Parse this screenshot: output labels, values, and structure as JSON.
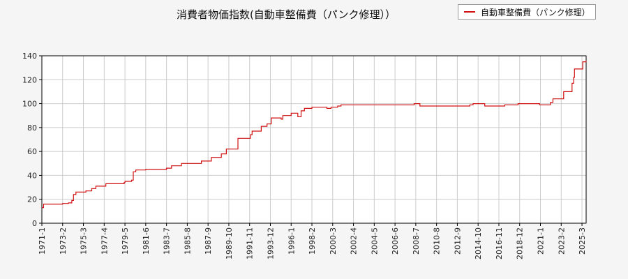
{
  "chart_data": {
    "type": "line",
    "title": "消費者物価指数(自動車整備費（パンク修理））",
    "xlabel": "",
    "ylabel": "",
    "ylim": [
      0,
      140
    ],
    "yticks": [
      0,
      20,
      40,
      60,
      80,
      100,
      120,
      140
    ],
    "x_range": [
      "1971-1",
      "2025-8"
    ],
    "xticks": [
      "1971-1",
      "1973-2",
      "1975-3",
      "1977-4",
      "1979-5",
      "1981-6",
      "1983-7",
      "1985-8",
      "1987-9",
      "1989-10",
      "1991-11",
      "1993-12",
      "1996-1",
      "1998-2",
      "2000-3",
      "2002-4",
      "2004-5",
      "2006-6",
      "2008-7",
      "2010-8",
      "2012-9",
      "2014-10",
      "2016-11",
      "2018-12",
      "2021-1",
      "2023-2",
      "2025-3"
    ],
    "grid": true,
    "legend_position": "top-right",
    "series": [
      {
        "name": "自動車整備費（パンク修理）",
        "color": "#d01010",
        "step": true,
        "points": [
          [
            "1971-1",
            13
          ],
          [
            "1971-3",
            16
          ],
          [
            "1973-2",
            16.5
          ],
          [
            "1973-9",
            17
          ],
          [
            "1974-1",
            19
          ],
          [
            "1974-3",
            24
          ],
          [
            "1974-6",
            26
          ],
          [
            "1975-6",
            27
          ],
          [
            "1976-1",
            29
          ],
          [
            "1976-6",
            31
          ],
          [
            "1977-6",
            33
          ],
          [
            "1979-4",
            34
          ],
          [
            "1979-5",
            35
          ],
          [
            "1980-1",
            36
          ],
          [
            "1980-3",
            43
          ],
          [
            "1980-6",
            44.5
          ],
          [
            "1981-6",
            45
          ],
          [
            "1983-7",
            46
          ],
          [
            "1984-1",
            48
          ],
          [
            "1985-1",
            50
          ],
          [
            "1987-1",
            52
          ],
          [
            "1988-1",
            55
          ],
          [
            "1989-1",
            58
          ],
          [
            "1989-7",
            62
          ],
          [
            "1990-9",
            71
          ],
          [
            "1991-12",
            74
          ],
          [
            "1992-2",
            77
          ],
          [
            "1993-1",
            81
          ],
          [
            "1993-8",
            83
          ],
          [
            "1994-1",
            88
          ],
          [
            "1995-1",
            87
          ],
          [
            "1995-3",
            90
          ],
          [
            "1996-1",
            92
          ],
          [
            "1996-9",
            89
          ],
          [
            "1997-1",
            94
          ],
          [
            "1997-5",
            96
          ],
          [
            "1998-2",
            97
          ],
          [
            "1999-8",
            96
          ],
          [
            "2000-1",
            97
          ],
          [
            "2000-9",
            98
          ],
          [
            "2001-1",
            99
          ],
          [
            "2008-5",
            100
          ],
          [
            "2008-12",
            98
          ],
          [
            "2013-12",
            99
          ],
          [
            "2014-4",
            100
          ],
          [
            "2015-6",
            98
          ],
          [
            "2017-6",
            99
          ],
          [
            "2018-10",
            100
          ],
          [
            "2019-10",
            100
          ],
          [
            "2020-12",
            99
          ],
          [
            "2022-1",
            101
          ],
          [
            "2022-4",
            104
          ],
          [
            "2023-5",
            110
          ],
          [
            "2024-3",
            117
          ],
          [
            "2024-5",
            122
          ],
          [
            "2024-6",
            129
          ],
          [
            "2025-4",
            135
          ],
          [
            "2025-8",
            136
          ]
        ]
      }
    ]
  }
}
